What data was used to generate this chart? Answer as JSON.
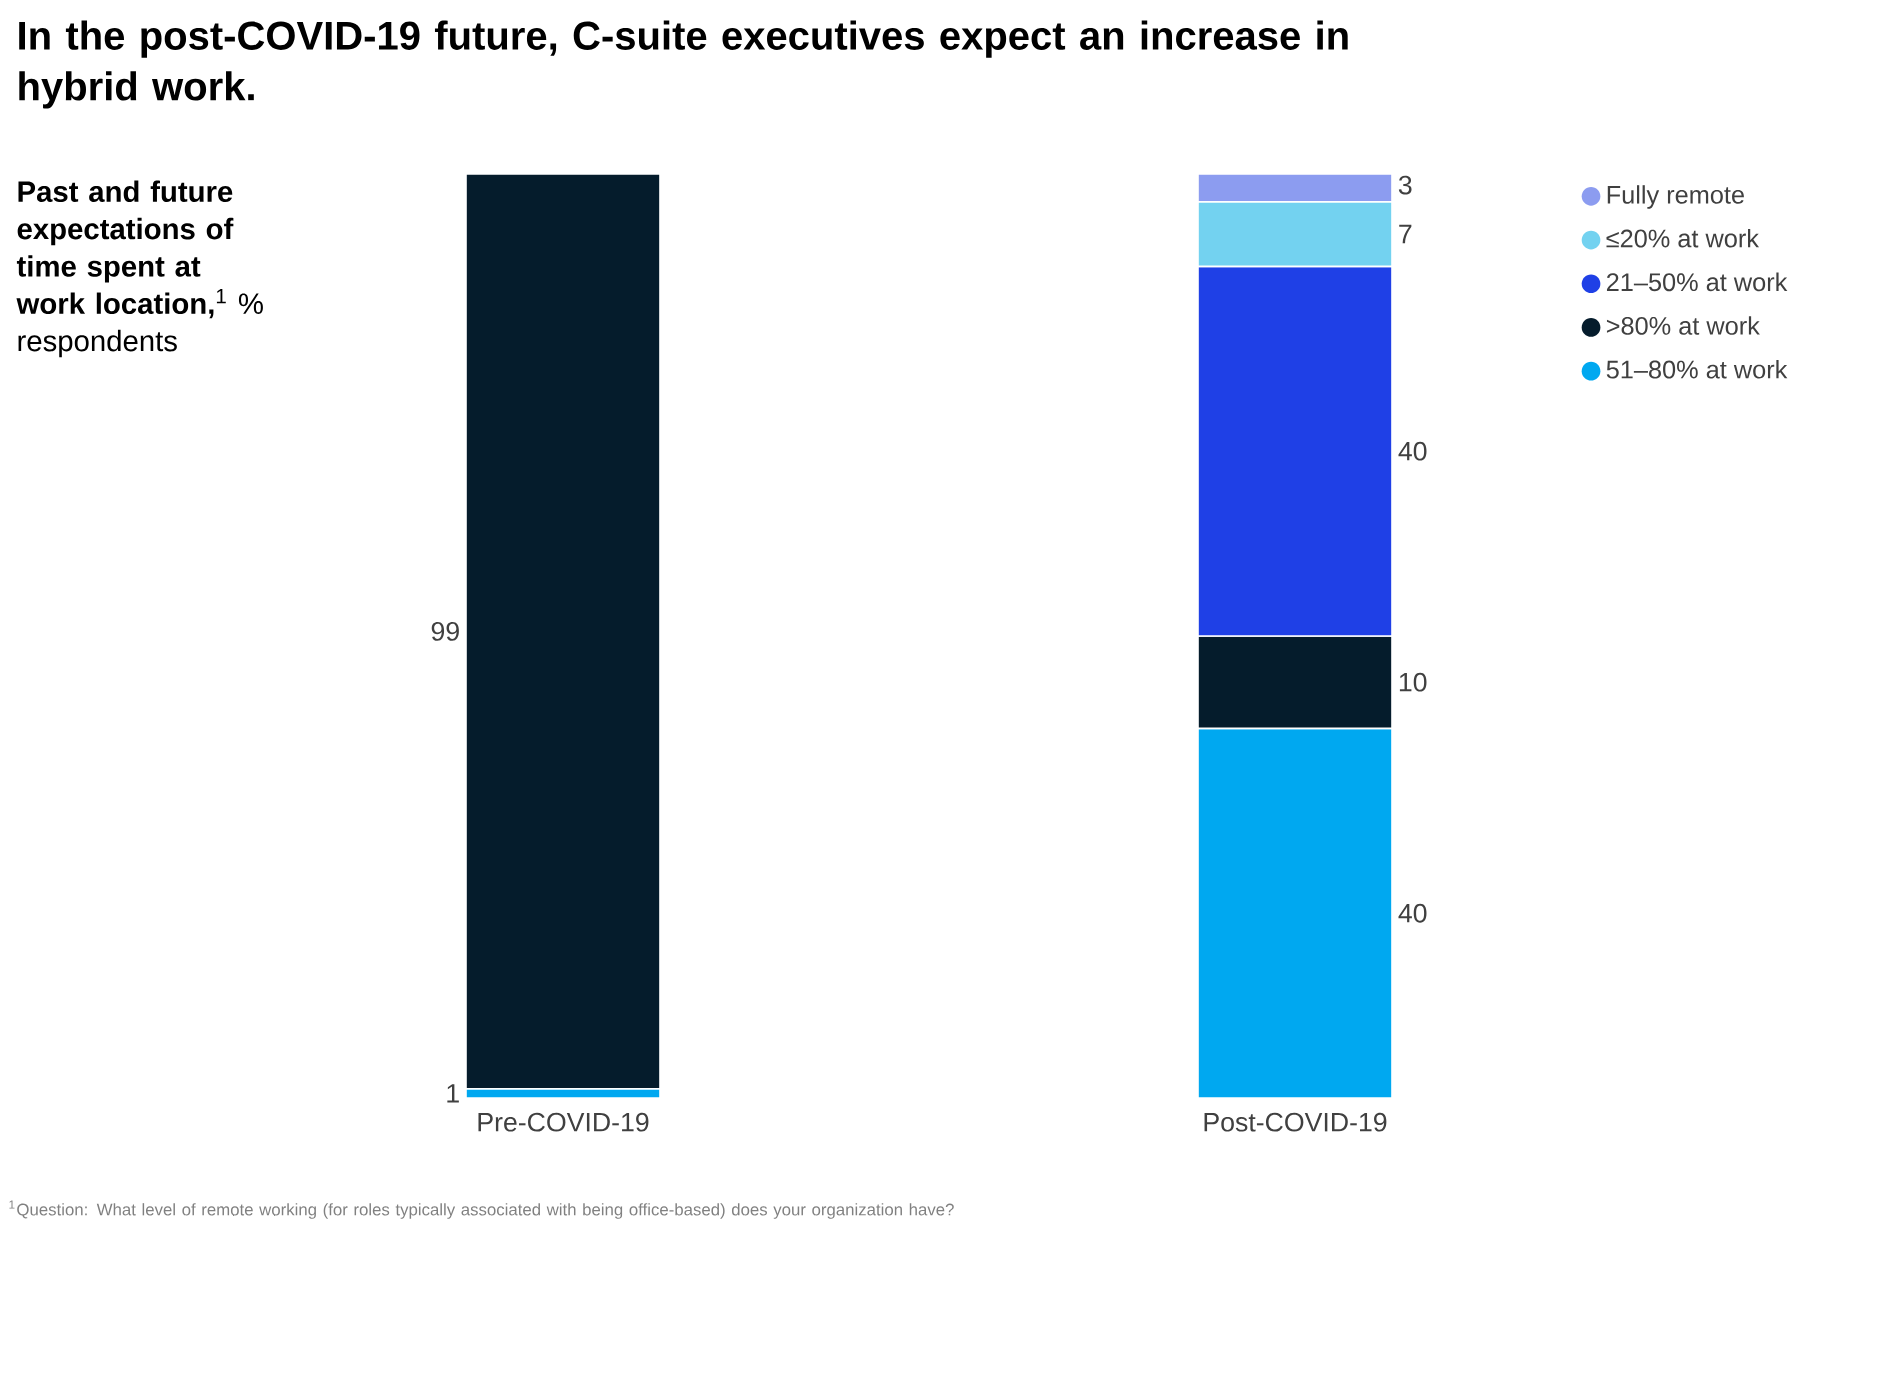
{
  "chart_data": {
    "type": "bar",
    "stacked": true,
    "title": "In the post-COVID-19 future, C-suite executives expect an increase in hybrid work.",
    "subtitle": "**Past and future expectations of time spent at work location,**$^{1}$ % respondents",
    "categories": [
      "Pre-COVID-19",
      "Post-COVID-19"
    ],
    "series": [
      {
        "name": "51–80% at work",
        "color": "#00a8f0",
        "values": [
          1,
          40
        ]
      },
      {
        "name": ">80% at work",
        "color": "#051c2c",
        "values": [
          99,
          10
        ]
      },
      {
        "name": "21–50% at work",
        "color": "#1f40e6",
        "values": [
          null,
          40
        ]
      },
      {
        "name": "≤20% at work",
        "color": "#73d2f0",
        "values": [
          null,
          7
        ]
      },
      {
        "name": "Fully remote",
        "color": "#8c9cf0",
        "values": [
          null,
          3
        ]
      }
    ],
    "data_labels": true,
    "legend": "top right",
    "annotations": [
      "$^{1}$Question: What level of remote working (for roles typically associated with being office-based) does your organization have?"
    ]
  }
}
